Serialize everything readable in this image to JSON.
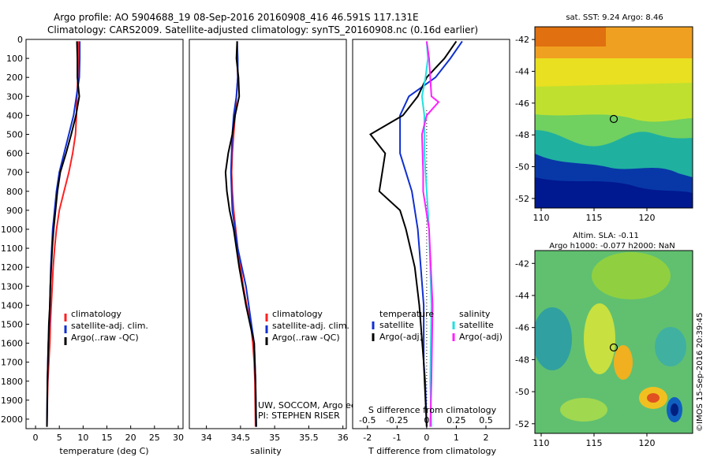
{
  "header": {
    "line1": "Argo profile: AO 5904688_19 08-Sep-2016 20160908_416 46.591S 117.131E",
    "line2": "Climatology: CARS2009. Satellite-adjusted climatology: synTS_20160908.nc (0.16d earlier)"
  },
  "colors": {
    "climatology": "#ff2020",
    "satellite": "#1030d0",
    "argo": "#000000",
    "sat_salinity": "#20e0e0",
    "argo_salinity": "#ff20ff"
  },
  "chart_data": [
    {
      "type": "line",
      "id": "temperature",
      "xlabel": "temperature (deg C)",
      "ylabel": "",
      "xlim": [
        -2,
        31
      ],
      "ylim": [
        0,
        2050
      ],
      "xticks": [
        "0",
        "5",
        "10",
        "15",
        "20",
        "25",
        "30"
      ],
      "yticks": [
        "0",
        "100",
        "200",
        "300",
        "400",
        "500",
        "600",
        "700",
        "800",
        "900",
        "1000",
        "1100",
        "1200",
        "1300",
        "1400",
        "1500",
        "1600",
        "1700",
        "1800",
        "1900",
        "2000"
      ],
      "legend": [
        "climatology",
        "satellite-adj. clim.",
        "Argo(..raw -QC)"
      ],
      "series": [
        {
          "name": "climatology",
          "color": "#ff2020",
          "x": [
            9.0,
            9.0,
            8.9,
            8.7,
            8.6,
            8.4,
            7.8,
            7.0,
            6.0,
            5.0,
            4.4,
            4.0,
            3.7,
            3.5,
            3.3,
            3.1,
            3.0,
            2.8,
            2.6,
            2.5,
            2.4
          ],
          "y": [
            10,
            100,
            200,
            300,
            400,
            500,
            600,
            700,
            800,
            900,
            1000,
            1100,
            1200,
            1300,
            1400,
            1500,
            1600,
            1700,
            1800,
            1900,
            2040
          ]
        },
        {
          "name": "satellite-adj. clim.",
          "color": "#1030d0",
          "x": [
            9.3,
            9.3,
            9.2,
            8.6,
            8.0,
            7.0,
            6.0,
            5.0,
            4.4,
            4.0,
            3.6,
            3.4,
            3.2,
            3.1,
            3.0,
            2.9,
            2.7,
            2.6,
            2.5,
            2.4
          ],
          "y": [
            10,
            100,
            200,
            300,
            400,
            500,
            600,
            700,
            800,
            900,
            1000,
            1100,
            1200,
            1300,
            1400,
            1500,
            1600,
            1700,
            1800,
            2040
          ]
        },
        {
          "name": "Argo(..raw -QC)",
          "color": "#000000",
          "x": [
            8.7,
            8.8,
            8.8,
            9.2,
            8.5,
            7.5,
            6.4,
            5.2,
            4.6,
            4.2,
            3.8,
            3.5,
            3.3,
            3.1,
            3.0,
            2.8,
            2.7,
            2.6,
            2.5,
            2.4
          ],
          "y": [
            10,
            100,
            200,
            300,
            400,
            500,
            600,
            700,
            800,
            900,
            1000,
            1100,
            1200,
            1300,
            1400,
            1500,
            1600,
            1700,
            1800,
            2040
          ]
        }
      ]
    },
    {
      "type": "line",
      "id": "salinity",
      "xlabel": "salinity",
      "ylabel": "",
      "xlim": [
        33.75,
        36.05
      ],
      "ylim": [
        0,
        2050
      ],
      "xticks": [
        "34",
        "34.5",
        "35",
        "35.5",
        "36"
      ],
      "legend": [
        "climatology",
        "satellite-adj. clim.",
        "Argo(..raw -QC)"
      ],
      "series": [
        {
          "name": "climatology",
          "color": "#ff2020",
          "x": [
            34.45,
            34.45,
            34.46,
            34.44,
            34.42,
            34.4,
            34.38,
            34.37,
            34.38,
            34.4,
            34.43,
            34.46,
            34.5,
            34.54,
            34.59,
            34.65,
            34.68,
            34.7,
            34.71,
            34.72
          ],
          "y": [
            10,
            100,
            200,
            300,
            400,
            500,
            600,
            700,
            800,
            900,
            1000,
            1100,
            1200,
            1300,
            1400,
            1500,
            1600,
            1700,
            1800,
            2040
          ]
        },
        {
          "name": "satellite-adj. clim.",
          "color": "#1030d0",
          "x": [
            34.45,
            34.46,
            34.46,
            34.44,
            34.4,
            34.38,
            34.37,
            34.36,
            34.37,
            34.38,
            34.42,
            34.46,
            34.52,
            34.58,
            34.62,
            34.66,
            34.7,
            34.72,
            34.73
          ],
          "y": [
            10,
            100,
            200,
            300,
            400,
            500,
            600,
            700,
            800,
            900,
            1000,
            1100,
            1200,
            1300,
            1400,
            1500,
            1600,
            1800,
            2040
          ]
        },
        {
          "name": "Argo(..raw -QC)",
          "color": "#000000",
          "x": [
            34.45,
            34.44,
            34.47,
            34.48,
            34.42,
            34.38,
            34.32,
            34.28,
            34.3,
            34.34,
            34.4,
            34.44,
            34.48,
            34.53,
            34.58,
            34.64,
            34.7,
            34.72,
            34.73
          ],
          "y": [
            10,
            100,
            200,
            300,
            400,
            500,
            600,
            700,
            800,
            900,
            1000,
            1100,
            1200,
            1300,
            1400,
            1500,
            1600,
            1800,
            2040
          ]
        }
      ],
      "annotation_lines": [
        "UW, SOCCOM, Argo equivalent",
        "PI: STEPHEN RISER"
      ]
    },
    {
      "type": "line",
      "id": "difference",
      "xlim": [
        -2.5,
        2.8
      ],
      "x_bottom_label": "T difference from climatology",
      "x_bottom_ticks": [
        "-2",
        "-1",
        "0",
        "1",
        "2"
      ],
      "x_top_label": "S difference from climatology",
      "x_top_ticks": [
        "-0.5",
        "-0.25",
        "0",
        "0.25",
        "0.5"
      ],
      "legend_titles": {
        "temperature": "temperature",
        "salinity": "salinity"
      },
      "legend": [
        "satellite",
        "Argo(-adj)",
        "satellite",
        "Argo(-adj)"
      ],
      "series": [
        {
          "name": "T satellite",
          "color": "#1030d0",
          "x": [
            1.2,
            0.8,
            0.3,
            -0.6,
            -0.9,
            -0.9,
            -0.5,
            -0.3,
            -0.2,
            -0.1,
            -0.1,
            -0.1,
            -0.05,
            0
          ],
          "y": [
            10,
            100,
            200,
            300,
            400,
            600,
            800,
            1000,
            1200,
            1400,
            1600,
            1700,
            1800,
            2040
          ]
        },
        {
          "name": "T Argo(-adj)",
          "color": "#000000",
          "x": [
            1.0,
            0.6,
            0.0,
            -0.3,
            -0.8,
            -1.9,
            -1.4,
            -1.6,
            -0.9,
            -0.7,
            -0.4,
            -0.25,
            -0.2,
            -0.1,
            0
          ],
          "y": [
            10,
            100,
            200,
            300,
            400,
            500,
            600,
            800,
            900,
            1000,
            1200,
            1400,
            1500,
            1700,
            2040
          ]
        },
        {
          "name": "S satellite",
          "color": "#20e0e0",
          "x": [
            0.0,
            0.01,
            -0.01,
            -0.04,
            -0.02,
            -0.02,
            0.0,
            0.02,
            0.03,
            0.04,
            0.03,
            0.04
          ],
          "y": [
            10,
            100,
            200,
            300,
            400,
            600,
            800,
            1000,
            1200,
            1400,
            1800,
            2040
          ]
        },
        {
          "name": "S Argo(-adj)",
          "color": "#ff20ff",
          "x": [
            0.0,
            0.02,
            0.03,
            0.04,
            0.1,
            0.0,
            -0.04,
            -0.03,
            -0.03,
            0.02,
            0.05,
            0.04,
            0.03
          ],
          "y": [
            10,
            100,
            200,
            300,
            330,
            400,
            500,
            700,
            800,
            1000,
            1400,
            1800,
            2040
          ]
        }
      ]
    }
  ],
  "maps": {
    "sst": {
      "title": "sat. SST: 9.24 Argo: 8.46",
      "yticks": [
        "-42",
        "-44",
        "-46",
        "-48",
        "-50",
        "-52"
      ],
      "xticks": [
        "110",
        "115",
        "120"
      ]
    },
    "sla": {
      "title1": "Altim. SLA: -0.11",
      "title2": "Argo h1000: -0.077 h2000: NaN",
      "yticks": [
        "-42",
        "-44",
        "-46",
        "-48",
        "-50",
        "-52"
      ],
      "xticks": [
        "110",
        "115",
        "120"
      ]
    }
  },
  "footer_stamp": "©IMOS 15-Sep-2016 20:39:45"
}
